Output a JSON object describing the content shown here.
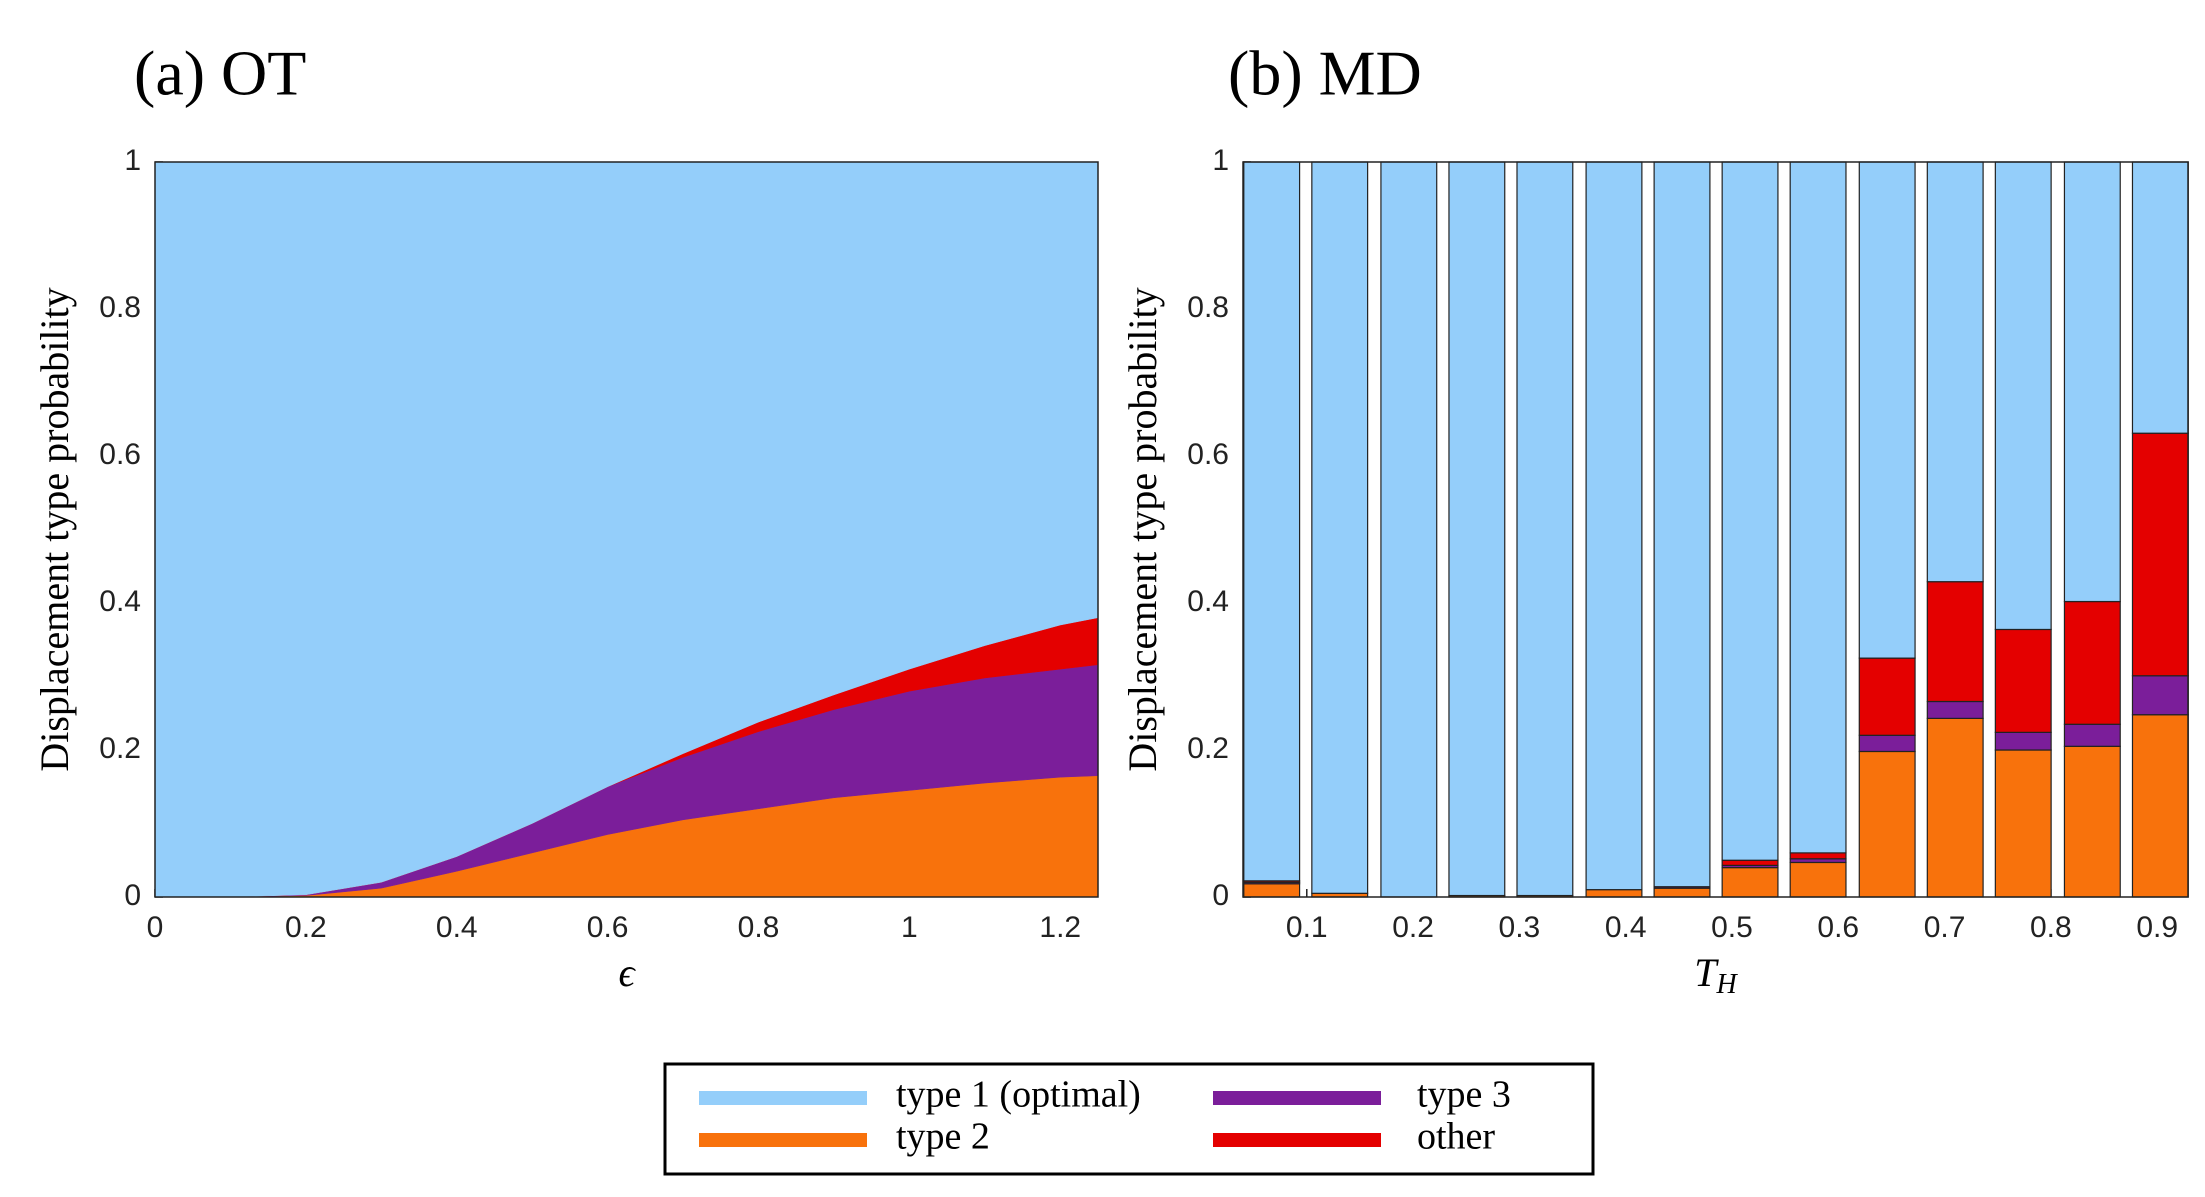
{
  "chart_data": [
    {
      "type": "area",
      "title": "(a) OT",
      "xlabel": "ϵ",
      "ylabel": "Displacement type probability",
      "x": [
        0,
        0.1,
        0.2,
        0.3,
        0.4,
        0.5,
        0.6,
        0.7,
        0.8,
        0.9,
        1.0,
        1.1,
        1.2,
        1.25
      ],
      "series": [
        {
          "name": "type 1 (optimal)",
          "color": "#94cefa",
          "values": [
            1,
            1,
            0.997,
            0.98,
            0.945,
            0.9,
            0.85,
            0.805,
            0.762,
            0.725,
            0.69,
            0.658,
            0.63,
            0.62
          ]
        },
        {
          "name": "type 2",
          "color": "#f8720c",
          "values": [
            0,
            0,
            0.002,
            0.012,
            0.035,
            0.06,
            0.085,
            0.105,
            0.12,
            0.135,
            0.145,
            0.155,
            0.163,
            0.165
          ]
        },
        {
          "name": "type 3",
          "color": "#7b1e9a",
          "values": [
            0,
            0,
            0.001,
            0.008,
            0.02,
            0.04,
            0.065,
            0.085,
            0.105,
            0.12,
            0.135,
            0.143,
            0.147,
            0.151
          ]
        },
        {
          "name": "other",
          "color": "#e40000",
          "values": [
            0,
            0,
            0,
            0,
            0,
            0,
            0,
            0.005,
            0.013,
            0.02,
            0.03,
            0.044,
            0.06,
            0.064
          ]
        }
      ],
      "xlim": [
        0,
        1.25
      ],
      "xticks": [
        0,
        0.2,
        0.4,
        0.6,
        0.8,
        1,
        1.2
      ],
      "ylim": [
        0,
        1
      ],
      "yticks": [
        0,
        0.2,
        0.4,
        0.6,
        0.8,
        1
      ]
    },
    {
      "type": "bar",
      "title": "(b) MD",
      "xlabel": "T_H",
      "ylabel": "Displacement type probability",
      "x": [
        0.067,
        0.131,
        0.196,
        0.26,
        0.324,
        0.389,
        0.453,
        0.517,
        0.581,
        0.646,
        0.71,
        0.774,
        0.839,
        0.903
      ],
      "series": [
        {
          "name": "type 1 (optimal)",
          "color": "#94cefa",
          "values": [
            0.978,
            0.995,
            1,
            0.998,
            0.998,
            0.99,
            0.986,
            0.95,
            0.94,
            0.675,
            0.571,
            0.636,
            0.598,
            0.369
          ]
        },
        {
          "name": "type 2",
          "color": "#f8720c",
          "values": [
            0.018,
            0.005,
            0,
            0.002,
            0.002,
            0.01,
            0.012,
            0.04,
            0.047,
            0.198,
            0.243,
            0.2,
            0.205,
            0.248
          ]
        },
        {
          "name": "type 3",
          "color": "#7b1e9a",
          "values": [
            0.002,
            0,
            0,
            0,
            0,
            0,
            0.002,
            0.003,
            0.005,
            0.022,
            0.023,
            0.024,
            0.03,
            0.053
          ]
        },
        {
          "name": "other",
          "color": "#e40000",
          "values": [
            0.002,
            0,
            0,
            0,
            0,
            0,
            0,
            0.007,
            0.008,
            0.105,
            0.163,
            0.14,
            0.167,
            0.33
          ]
        }
      ],
      "xlim": [
        0.04,
        0.929
      ],
      "xticks": [
        0.1,
        0.2,
        0.3,
        0.4,
        0.5,
        0.6,
        0.7,
        0.8,
        0.9
      ],
      "ylim": [
        0,
        1
      ],
      "yticks": [
        0,
        0.2,
        0.4,
        0.6,
        0.8,
        1
      ]
    }
  ]
}
